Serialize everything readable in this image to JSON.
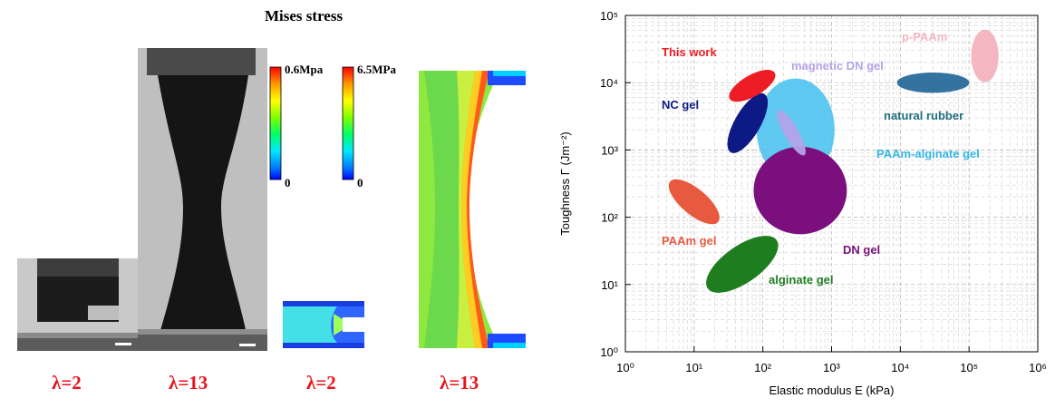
{
  "left_figure": {
    "title": "Mises stress",
    "colorbar_small": {
      "max_label": "0.6Mpa",
      "min_label": "0"
    },
    "colorbar_large": {
      "max_label": "6.5MPa",
      "min_label": "0"
    },
    "stretch_labels": [
      "λ=2",
      "λ=13",
      "λ=2",
      "λ=13"
    ]
  },
  "chart_data": {
    "type": "scatter",
    "title": "",
    "xlabel": "Elastic modulus E (kPa)",
    "ylabel": "Toughness Γ (Jm⁻²)",
    "xscale": "log",
    "yscale": "log",
    "xlim": [
      1,
      1000000
    ],
    "ylim": [
      1,
      100000
    ],
    "x_ticks": [
      "10⁰",
      "10¹",
      "10²",
      "10³",
      "10⁴",
      "10⁵",
      "10⁶"
    ],
    "y_ticks": [
      "10⁰",
      "10¹",
      "10²",
      "10³",
      "10⁴",
      "10⁵"
    ],
    "grid": true,
    "series": [
      {
        "name": "This work",
        "label": "This work",
        "color": "#ee1c24",
        "center_E": 70,
        "center_G": 9000,
        "E_range": [
          40,
          150
        ],
        "G_range": [
          5000,
          16000
        ]
      },
      {
        "name": "p-PAAm",
        "label": "p-PAAm",
        "color": "#f4b6bf",
        "center_E": 170000,
        "center_G": 25000,
        "E_range": [
          100000,
          250000
        ],
        "G_range": [
          10000,
          60000
        ]
      },
      {
        "name": "magnetic DN gel",
        "label": "magnetic DN gel",
        "color": "#b3a3e8",
        "center_E": 260,
        "center_G": 1800,
        "E_range": [
          170,
          380
        ],
        "G_range": [
          700,
          4500
        ]
      },
      {
        "name": "natural rubber",
        "label": "natural rubber",
        "color": "#34729f",
        "center_E": 30000,
        "center_G": 10000,
        "E_range": [
          8000,
          90000
        ],
        "G_range": [
          7000,
          14000
        ]
      },
      {
        "name": "NC gel",
        "label": "NC gel",
        "color": "#0d1a85",
        "center_E": 60,
        "center_G": 2500,
        "E_range": [
          30,
          130
        ],
        "G_range": [
          800,
          9000
        ]
      },
      {
        "name": "PAAm-alginate gel",
        "label": "PAAm-alginate gel",
        "color": "#4fc3ef",
        "center_E": 300,
        "center_G": 2000,
        "E_range": [
          110,
          1500
        ],
        "G_range": [
          300,
          10000
        ]
      },
      {
        "name": "DN gel",
        "label": "DN gel",
        "color": "#7b0f7e",
        "center_E": 350,
        "center_G": 250,
        "E_range": [
          110,
          2500
        ],
        "G_range": [
          60,
          1200
        ]
      },
      {
        "name": "PAAm gel",
        "label": "PAAm gel",
        "color": "#e85a3f",
        "center_E": 10,
        "center_G": 170,
        "E_range": [
          5,
          20
        ],
        "G_range": [
          80,
          400
        ]
      },
      {
        "name": "alginate gel",
        "label": "alginate gel",
        "color": "#1e7d1f",
        "center_E": 50,
        "center_G": 20,
        "E_range": [
          20,
          150
        ],
        "G_range": [
          8,
          60
        ]
      }
    ]
  }
}
